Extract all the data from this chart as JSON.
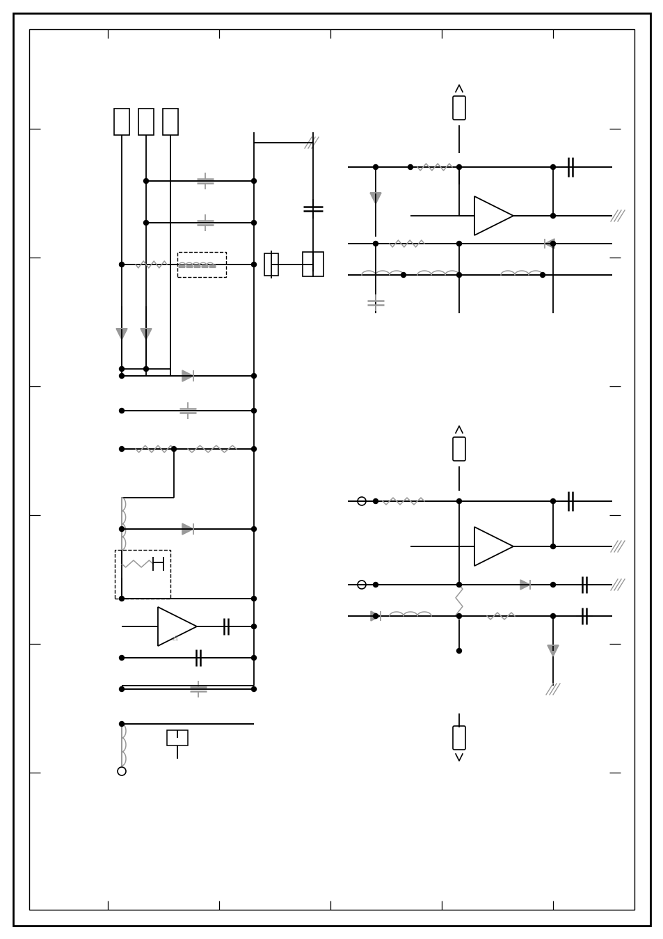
{
  "bg_color": "#ffffff",
  "line_color": "#000000",
  "gray_color": "#999999",
  "fig_width": 9.54,
  "fig_height": 13.49,
  "dpi": 100
}
